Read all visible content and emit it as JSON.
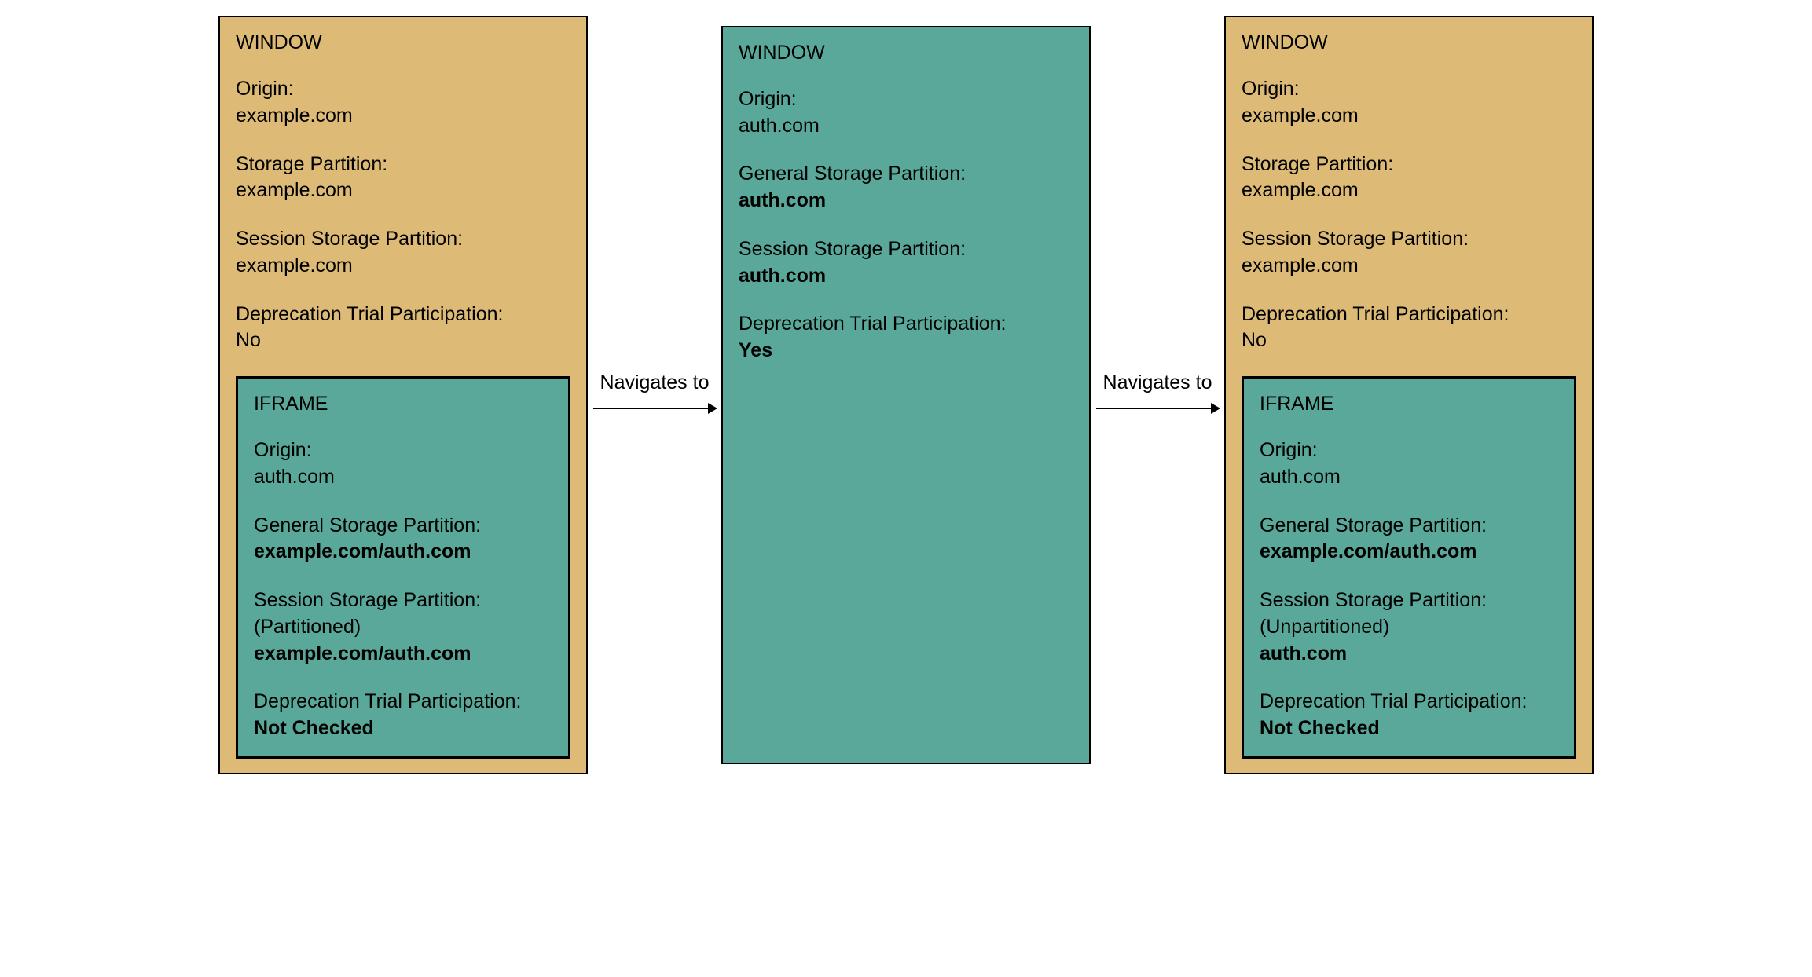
{
  "diagram": {
    "type": "flowchart",
    "background_color": "#ffffff",
    "border_color": "#000000",
    "font_family": "Arial",
    "title_fontsize": 25,
    "body_fontsize": 25,
    "colors": {
      "window_bg": "#ddbb77",
      "iframe_bg": "#5aa89a",
      "text": "#000000",
      "arrow": "#000000"
    },
    "arrow": {
      "label": "Navigates to",
      "stroke_width": 2
    },
    "panels": [
      {
        "id": "panel1",
        "bg": "window",
        "title": "WINDOW",
        "fields": [
          {
            "label": "Origin:",
            "value": "example.com",
            "bold": false
          },
          {
            "label": "Storage Partition:",
            "value": "example.com",
            "bold": false
          },
          {
            "label": "Session Storage Partition:",
            "value": "example.com",
            "bold": false
          },
          {
            "label": "Deprecation Trial Participation:",
            "value": "No",
            "bold": false
          }
        ],
        "iframe": {
          "bg": "iframe",
          "title": "IFRAME",
          "fields": [
            {
              "label": "Origin:",
              "value": "auth.com",
              "bold": false
            },
            {
              "label": "General Storage Partition:",
              "value": "example.com/auth.com",
              "bold": true
            },
            {
              "label": "Session Storage Partition:",
              "paren": "(Partitioned)",
              "value": "example.com/auth.com",
              "bold": true
            },
            {
              "label": "Deprecation Trial Participation:",
              "value": "Not Checked",
              "bold": true
            }
          ]
        }
      },
      {
        "id": "panel2",
        "bg": "iframe",
        "title": "WINDOW",
        "fields": [
          {
            "label": "Origin:",
            "value": "auth.com",
            "bold": false
          },
          {
            "label": "General Storage Partition:",
            "value": "auth.com",
            "bold": true
          },
          {
            "label": "Session Storage Partition:",
            "value": "auth.com",
            "bold": true
          },
          {
            "label": "Deprecation Trial Participation:",
            "value": "Yes",
            "bold": true
          }
        ],
        "iframe": null
      },
      {
        "id": "panel3",
        "bg": "window",
        "title": "WINDOW",
        "fields": [
          {
            "label": "Origin:",
            "value": "example.com",
            "bold": false
          },
          {
            "label": "Storage Partition:",
            "value": "example.com",
            "bold": false
          },
          {
            "label": "Session Storage Partition:",
            "value": "example.com",
            "bold": false
          },
          {
            "label": "Deprecation Trial Participation:",
            "value": "No",
            "bold": false
          }
        ],
        "iframe": {
          "bg": "iframe",
          "title": "IFRAME",
          "fields": [
            {
              "label": "Origin:",
              "value": "auth.com",
              "bold": false
            },
            {
              "label": "General Storage Partition:",
              "value": "example.com/auth.com",
              "bold": true
            },
            {
              "label": "Session Storage Partition:",
              "paren": "(Unpartitioned)",
              "value": "auth.com",
              "bold": true
            },
            {
              "label": "Deprecation Trial Participation:",
              "value": "Not Checked",
              "bold": true
            }
          ]
        }
      }
    ]
  }
}
